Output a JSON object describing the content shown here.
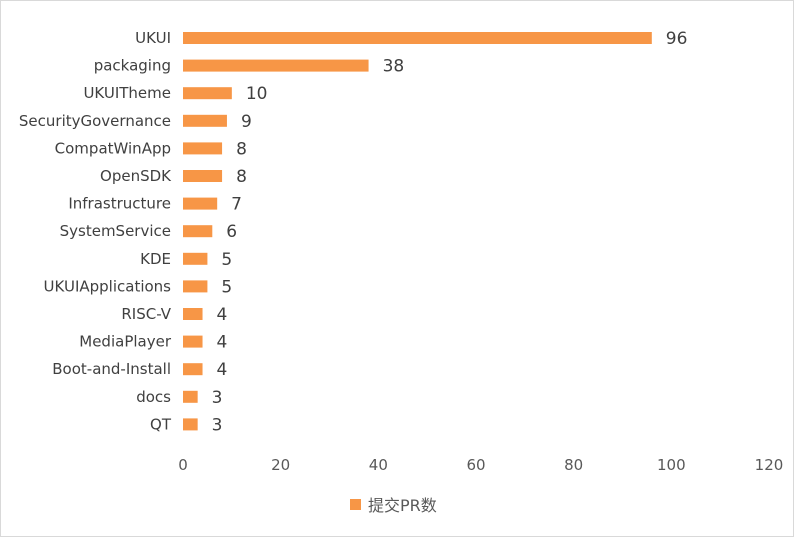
{
  "chart_data": {
    "type": "bar",
    "orientation": "horizontal",
    "categories": [
      "UKUI",
      "packaging",
      "UKUITheme",
      "SecurityGovernance",
      "CompatWinApp",
      "OpenSDK",
      "Infrastructure",
      "SystemService",
      "KDE",
      "UKUIApplications",
      "RISC-V",
      "MediaPlayer",
      "Boot-and-Install",
      "docs",
      "QT"
    ],
    "series": [
      {
        "name": "提交PR数",
        "values": [
          96,
          38,
          10,
          9,
          8,
          8,
          7,
          6,
          5,
          5,
          4,
          4,
          4,
          3,
          3
        ],
        "color": "#F79646"
      }
    ],
    "xlim": [
      0,
      120
    ],
    "xticks": [
      "0",
      "20",
      "40",
      "60",
      "80",
      "100",
      "120"
    ],
    "grid": false,
    "data_labels": true,
    "legend": {
      "position": "bottom",
      "label": "提交PR数"
    }
  }
}
